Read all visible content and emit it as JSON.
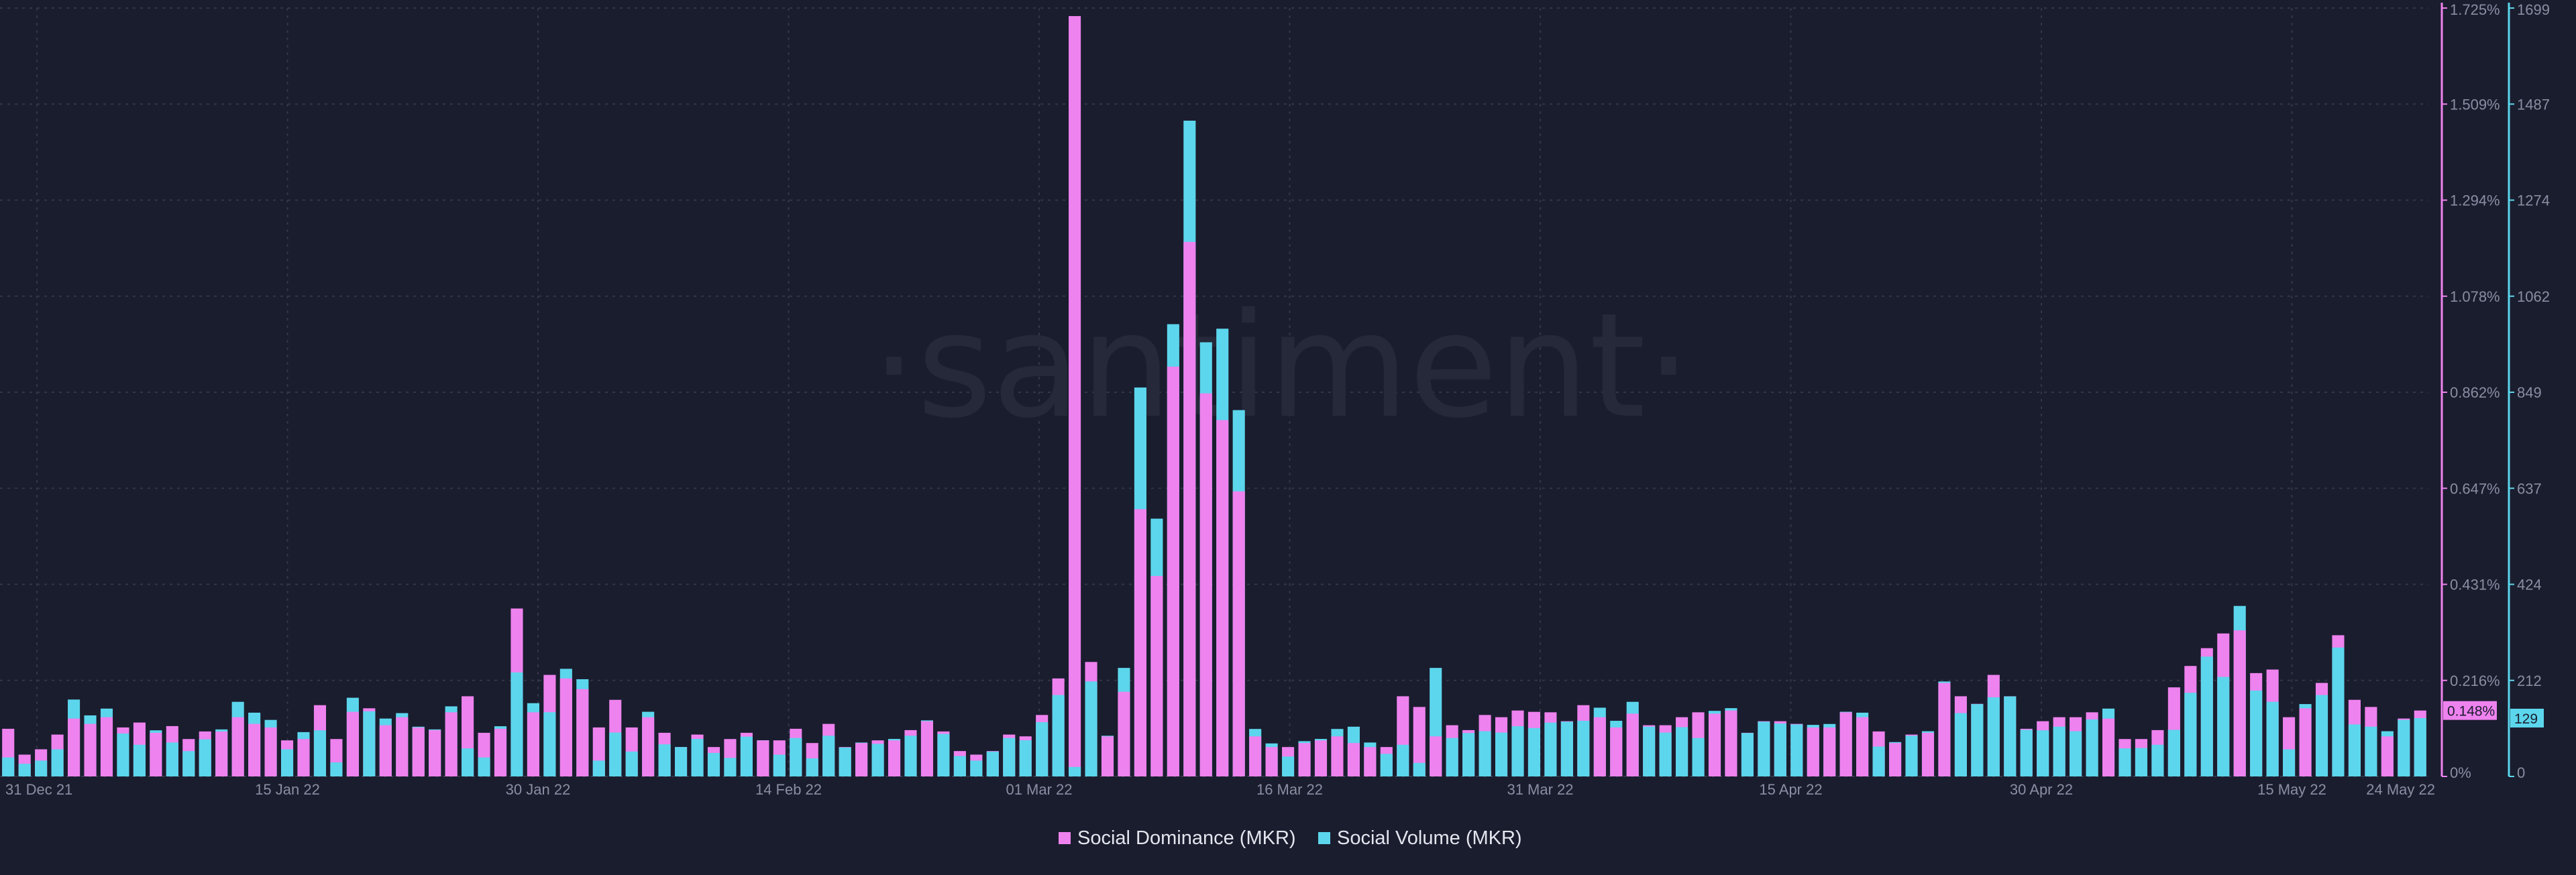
{
  "chart_data": {
    "type": "bar",
    "watermark": "·santiment·",
    "x_ticks": [
      "31 Dec 21",
      "15 Jan 22",
      "30 Jan 22",
      "14 Feb 22",
      "01 Mar 22",
      "16 Mar 22",
      "31 Mar 22",
      "15 Apr 22",
      "30 Apr 22",
      "15 May 22",
      "24 May 22"
    ],
    "y_right1_ticks": [
      "0%",
      "0.216%",
      "0.431%",
      "0.647%",
      "0.862%",
      "1.078%",
      "1.294%",
      "1.509%",
      "1.725%"
    ],
    "y_right1_range": [
      0,
      1.725
    ],
    "y_right2_ticks": [
      "0",
      "212",
      "424",
      "637",
      "849",
      "1062",
      "1274",
      "1487",
      "1699"
    ],
    "y_right2_range": [
      0,
      1699
    ],
    "last_value_labels": {
      "dominance": "0.148%",
      "volume": "129"
    },
    "legend": {
      "placement": "bottom-center",
      "items": [
        "Social Dominance (MKR)",
        "Social Volume (MKR)"
      ]
    },
    "colors": {
      "dominance": "#ee82ee",
      "volume": "#5cd6ec",
      "background": "#1a1d2e",
      "grid": "#323647",
      "text": "#8a8ea3"
    },
    "series": [
      {
        "name": "Social Dominance (MKR)",
        "unit": "%",
        "values": [
          0.107,
          0.049,
          0.061,
          0.094,
          0.13,
          0.118,
          0.133,
          0.11,
          0.121,
          0.098,
          0.113,
          0.084,
          0.101,
          0.101,
          0.133,
          0.118,
          0.11,
          0.081,
          0.084,
          0.16,
          0.084,
          0.145,
          0.153,
          0.115,
          0.133,
          0.11,
          0.104,
          0.144,
          0.18,
          0.098,
          0.107,
          0.377,
          0.144,
          0.228,
          0.22,
          0.196,
          0.11,
          0.172,
          0.11,
          0.133,
          0.098,
          0.066,
          0.094,
          0.066,
          0.084,
          0.098,
          0.081,
          0.081,
          0.107,
          0.075,
          0.118,
          0.066,
          0.075,
          0.081,
          0.081,
          0.104,
          0.124,
          0.101,
          0.057,
          0.049,
          0.057,
          0.094,
          0.09,
          0.138,
          0.22,
          1.707,
          0.257,
          0.09,
          0.19,
          0.6,
          0.45,
          0.92,
          1.2,
          0.86,
          0.8,
          0.64,
          0.09,
          0.066,
          0.066,
          0.075,
          0.081,
          0.09,
          0.075,
          0.066,
          0.066,
          0.18,
          0.156,
          0.09,
          0.115,
          0.104,
          0.138,
          0.133,
          0.148,
          0.145,
          0.144,
          0.124,
          0.16,
          0.133,
          0.11,
          0.141,
          0.115,
          0.115,
          0.133,
          0.144,
          0.141,
          0.148,
          0.098,
          0.124,
          0.124,
          0.118,
          0.11,
          0.11,
          0.144,
          0.133,
          0.101,
          0.075,
          0.094,
          0.098,
          0.21,
          0.18,
          0.163,
          0.228,
          0.18,
          0.107,
          0.124,
          0.133,
          0.133,
          0.144,
          0.13,
          0.084,
          0.084,
          0.104,
          0.2,
          0.248,
          0.288,
          0.321,
          0.328,
          0.232,
          0.24,
          0.133,
          0.153,
          0.21,
          0.317,
          0.172,
          0.156,
          0.09,
          0.13,
          0.148
        ]
      },
      {
        "name": "Social Volume (MKR)",
        "unit": "",
        "values": [
          42,
          28,
          35,
          60,
          170,
          135,
          150,
          95,
          70,
          102,
          75,
          56,
          82,
          104,
          165,
          141,
          125,
          60,
          98,
          102,
          31,
          174,
          144,
          128,
          140,
          110,
          104,
          155,
          62,
          42,
          111,
          230,
          162,
          142,
          238,
          215,
          35,
          97,
          55,
          143,
          71,
          65,
          83,
          52,
          41,
          88,
          80,
          48,
          85,
          40,
          90,
          64,
          75,
          72,
          83,
          90,
          124,
          94,
          45,
          35,
          55,
          85,
          80,
          120,
          180,
          21,
          210,
          90,
          240,
          860,
          570,
          1000,
          1450,
          960,
          990,
          810,
          105,
          73,
          44,
          78,
          83,
          105,
          110,
          75,
          50,
          70,
          30,
          240,
          85,
          96,
          100,
          97,
          111,
          107,
          119,
          121,
          123,
          152,
          123,
          165,
          110,
          97,
          109,
          85,
          145,
          151,
          96,
          121,
          117,
          115,
          114,
          116,
          143,
          141,
          66,
          76,
          90,
          100,
          210,
          140,
          160,
          175,
          177,
          103,
          102,
          110,
          100,
          126,
          150,
          62,
          63,
          70,
          103,
          185,
          265,
          220,
          377,
          190,
          165,
          60,
          160,
          180,
          285,
          115,
          110,
          100,
          125,
          129
        ]
      }
    ]
  }
}
